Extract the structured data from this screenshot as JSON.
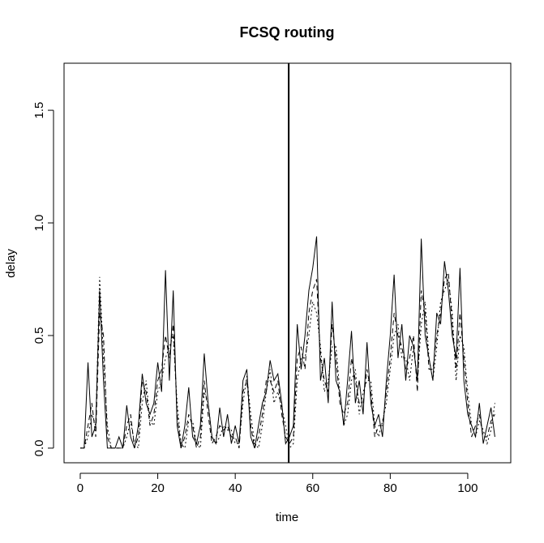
{
  "chart_data": {
    "type": "line",
    "title": "FCSQ routing",
    "xlabel": "time",
    "ylabel": "delay",
    "x": [
      0,
      1,
      2,
      3,
      4,
      5,
      6,
      7,
      8,
      9,
      10,
      11,
      12,
      13,
      14,
      15,
      16,
      17,
      18,
      19,
      20,
      21,
      22,
      23,
      24,
      25,
      26,
      27,
      28,
      29,
      30,
      31,
      32,
      33,
      34,
      35,
      36,
      37,
      38,
      39,
      40,
      41,
      42,
      43,
      44,
      45,
      46,
      47,
      48,
      49,
      50,
      51,
      52,
      53,
      54,
      55,
      56,
      57,
      58,
      59,
      60,
      61,
      62,
      63,
      64,
      65,
      66,
      67,
      68,
      69,
      70,
      71,
      72,
      73,
      74,
      75,
      76,
      77,
      78,
      79,
      80,
      81,
      82,
      83,
      84,
      85,
      86,
      87,
      88,
      89,
      90,
      91,
      92,
      93,
      94,
      95,
      96,
      97,
      98,
      99,
      100,
      101,
      102,
      103,
      104,
      105,
      106,
      107
    ],
    "series": [
      {
        "color": "#000000",
        "dash": "solid",
        "values": [
          0,
          0,
          0.38,
          0.05,
          0.1,
          0.7,
          0.3,
          0,
          0,
          0,
          0.05,
          0,
          0.19,
          0.05,
          0,
          0.1,
          0.33,
          0.2,
          0.15,
          0.2,
          0.38,
          0.25,
          0.79,
          0.3,
          0.7,
          0.1,
          0,
          0.1,
          0.27,
          0.05,
          0.02,
          0.1,
          0.42,
          0.2,
          0.05,
          0.02,
          0.18,
          0.05,
          0.15,
          0.02,
          0.1,
          0.02,
          0.3,
          0.35,
          0.05,
          0,
          0.1,
          0.2,
          0.25,
          0.39,
          0.3,
          0.33,
          0.2,
          0.02,
          0.05,
          0.1,
          0.55,
          0.35,
          0.5,
          0.7,
          0.8,
          0.94,
          0.3,
          0.4,
          0.2,
          0.65,
          0.3,
          0.25,
          0.1,
          0.3,
          0.52,
          0.2,
          0.3,
          0.15,
          0.47,
          0.2,
          0.1,
          0.15,
          0.05,
          0.3,
          0.5,
          0.77,
          0.4,
          0.55,
          0.3,
          0.5,
          0.45,
          0.3,
          0.93,
          0.5,
          0.4,
          0.3,
          0.6,
          0.55,
          0.83,
          0.7,
          0.5,
          0.4,
          0.8,
          0.3,
          0.15,
          0.1,
          0.05,
          0.2,
          0.02,
          0.1,
          0.18,
          0.05
        ]
      },
      {
        "color": "#000000",
        "dash": "6,4",
        "values": [
          0,
          0,
          0.1,
          0.2,
          0.05,
          0.6,
          0.5,
          0.05,
          0,
          0,
          0,
          0,
          0.1,
          0.15,
          0,
          0.05,
          0.3,
          0.25,
          0.1,
          0.15,
          0.3,
          0.35,
          0.5,
          0.4,
          0.55,
          0.15,
          0,
          0.05,
          0.15,
          0.1,
          0,
          0.05,
          0.3,
          0.15,
          0.02,
          0.05,
          0.1,
          0.08,
          0.1,
          0.05,
          0.05,
          0,
          0.25,
          0.3,
          0.1,
          0,
          0.05,
          0.15,
          0.3,
          0.3,
          0.25,
          0.3,
          0.15,
          0.05,
          0.02,
          0.05,
          0.4,
          0.45,
          0.35,
          0.6,
          0.7,
          0.75,
          0.4,
          0.3,
          0.25,
          0.55,
          0.4,
          0.2,
          0.15,
          0.2,
          0.4,
          0.3,
          0.2,
          0.2,
          0.35,
          0.25,
          0.05,
          0.1,
          0.1,
          0.25,
          0.4,
          0.6,
          0.5,
          0.45,
          0.35,
          0.4,
          0.5,
          0.25,
          0.7,
          0.6,
          0.35,
          0.35,
          0.5,
          0.6,
          0.75,
          0.78,
          0.55,
          0.35,
          0.6,
          0.4,
          0.2,
          0.05,
          0.1,
          0.15,
          0.05,
          0.05,
          0.12,
          0.15
        ]
      },
      {
        "color": "#000000",
        "dash": "2,3",
        "values": [
          0,
          0,
          0.05,
          0.15,
          0.1,
          0.76,
          0.4,
          0.1,
          0,
          0,
          0,
          0,
          0.05,
          0.12,
          0.02,
          0,
          0.2,
          0.3,
          0.12,
          0.1,
          0.25,
          0.3,
          0.4,
          0.45,
          0.5,
          0.2,
          0.02,
          0,
          0.12,
          0.12,
          0.02,
          0,
          0.25,
          0.2,
          0.05,
          0.02,
          0.05,
          0.1,
          0.08,
          0.08,
          0.02,
          0.02,
          0.2,
          0.32,
          0.15,
          0.02,
          0,
          0.1,
          0.25,
          0.35,
          0.2,
          0.25,
          0.18,
          0.1,
          0,
          0.02,
          0.3,
          0.4,
          0.4,
          0.5,
          0.65,
          0.6,
          0.45,
          0.25,
          0.3,
          0.45,
          0.45,
          0.25,
          0.1,
          0.15,
          0.3,
          0.35,
          0.15,
          0.25,
          0.3,
          0.3,
          0.1,
          0.05,
          0.12,
          0.2,
          0.35,
          0.5,
          0.55,
          0.4,
          0.4,
          0.3,
          0.45,
          0.3,
          0.55,
          0.65,
          0.4,
          0.3,
          0.45,
          0.65,
          0.7,
          0.75,
          0.6,
          0.3,
          0.5,
          0.45,
          0.25,
          0.1,
          0.05,
          0.12,
          0.08,
          0.02,
          0.08,
          0.2
        ]
      }
    ],
    "vline": 53.8,
    "xlim": [
      -4.18,
      111.1
    ],
    "xticks": [
      0,
      20,
      40,
      60,
      80,
      100
    ],
    "ylim": [
      -0.065,
      1.709
    ],
    "yticks": [
      {
        "value": 0,
        "label": "0.0"
      },
      {
        "value": 0.5,
        "label": "0.5"
      },
      {
        "value": 1,
        "label": "1.0"
      },
      {
        "value": 1.5,
        "label": "1.5"
      }
    ]
  }
}
